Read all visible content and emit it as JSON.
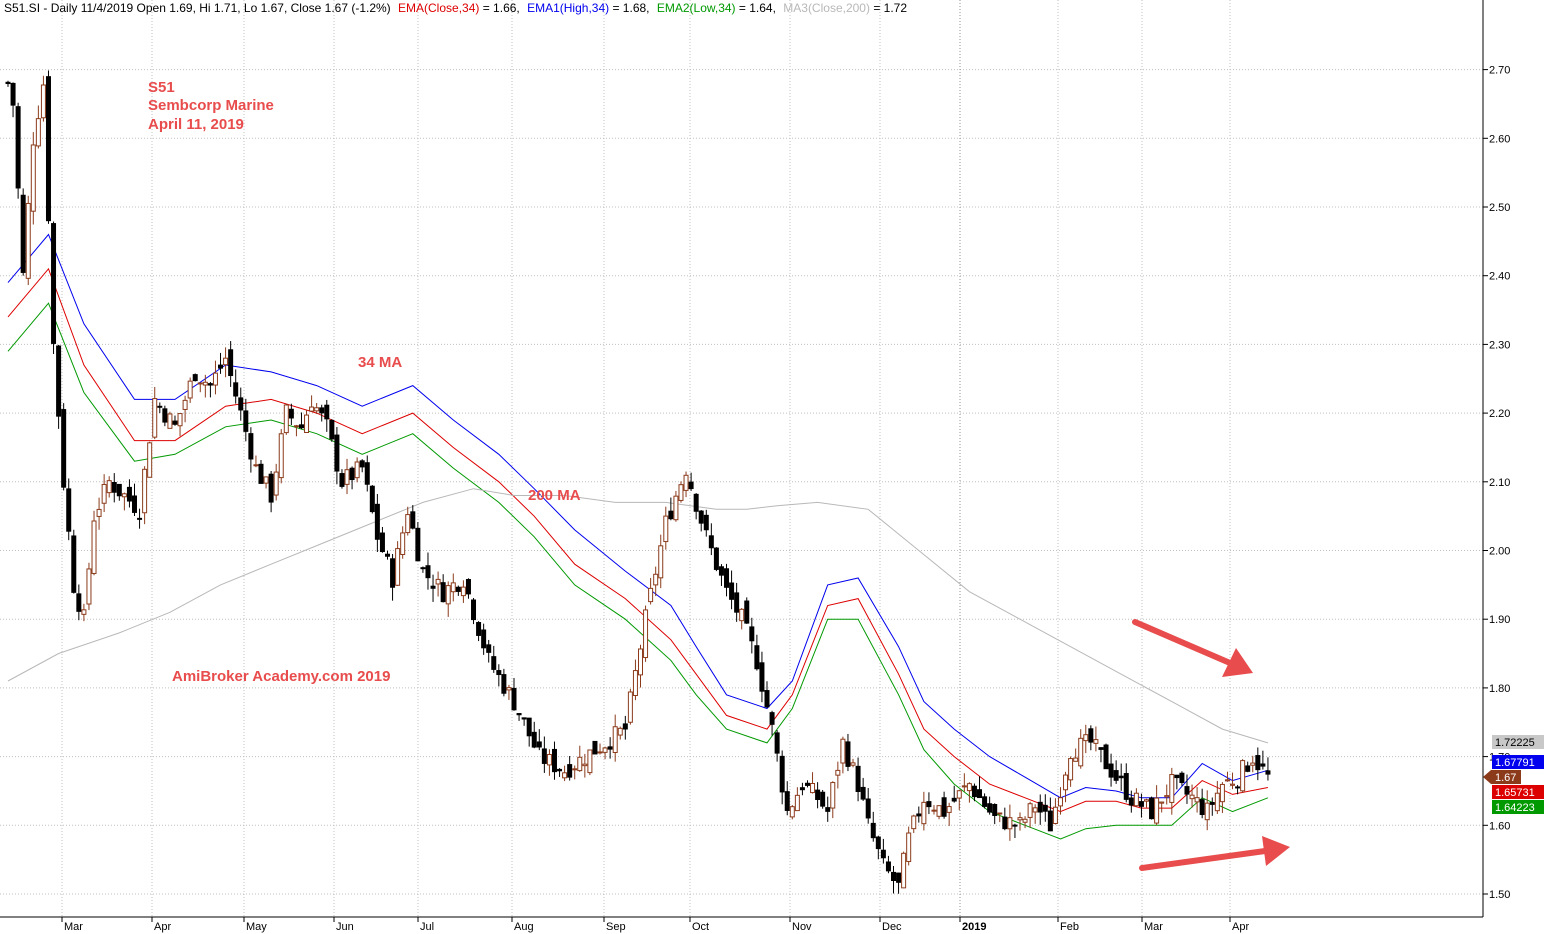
{
  "header": {
    "ticker_info": "S51.SI - Daily 11/4/2019 Open 1.69, Hi 1.71, Lo 1.67, Close 1.67 (-1.2%)",
    "ema_close": "EMA(Close,34)",
    "ema_close_val": " = 1.66,",
    "ema_high": "EMA1(High,34)",
    "ema_high_val": " = 1.68,",
    "ema_low": "EMA2(Low,34)",
    "ema_low_val": " = 1.64,",
    "ma_close": "MA3(Close,200)",
    "ma_close_val": " = 1.72"
  },
  "annotations": {
    "ticker": "S51",
    "company": "Sembcorp Marine",
    "date": "April 11, 2019",
    "ma34": "34 MA",
    "ma200": "200 MA",
    "watermark": "AmiBroker Academy.com  2019"
  },
  "chart_data": {
    "type": "candlestick",
    "title": "S51.SI - Daily",
    "ylim": [
      1.47,
      2.76
    ],
    "y_ticks": [
      1.5,
      1.6,
      1.7,
      1.8,
      1.9,
      2.0,
      2.1,
      2.2,
      2.3,
      2.4,
      2.5,
      2.6,
      2.7
    ],
    "y_tick_labels": [
      "1.50",
      "1.60",
      "1.70",
      "1.80",
      "1.90",
      "2.00",
      "2.10",
      "2.20",
      "2.30",
      "2.40",
      "2.50",
      "2.60",
      "2.70"
    ],
    "x_month_labels": [
      "Mar",
      "Apr",
      "May",
      "Jun",
      "Jul",
      "Aug",
      "Sep",
      "Oct",
      "Nov",
      "Dec",
      "2019",
      "Feb",
      "Mar",
      "Apr"
    ],
    "grid": true,
    "price_labels": [
      {
        "text": "1.72225",
        "value": 1.72225,
        "color": "#c8c8c8",
        "text_color": "#000000"
      },
      {
        "text": "1.67791",
        "value": 1.67791,
        "color": "#0000ee",
        "text_color": "#ffffff"
      },
      {
        "text": "1.67",
        "value": 1.67,
        "color": "#8b3a1a",
        "text_color": "#ffffff"
      },
      {
        "text": "1.65731",
        "value": 1.65731,
        "color": "#dd0000",
        "text_color": "#ffffff"
      },
      {
        "text": "1.64223",
        "value": 1.64223,
        "color": "#009900",
        "text_color": "#ffffff"
      }
    ],
    "series": [
      {
        "name": "EMA(Close,34)",
        "color": "#dd0000",
        "x": [
          0,
          8,
          15,
          25,
          33,
          43,
          52,
          61,
          70,
          80,
          88,
          97,
          104,
          112,
          122,
          131,
          136,
          142,
          150,
          155,
          162,
          168,
          176,
          181,
          187,
          194,
          201,
          208,
          213,
          219,
          224,
          230,
          236,
          242,
          249
        ],
        "values": [
          2.34,
          2.41,
          2.27,
          2.16,
          2.16,
          2.21,
          2.22,
          2.2,
          2.17,
          2.2,
          2.15,
          2.1,
          2.05,
          1.98,
          1.93,
          1.87,
          1.82,
          1.76,
          1.74,
          1.79,
          1.92,
          1.93,
          1.82,
          1.74,
          1.7,
          1.66,
          1.64,
          1.62,
          1.635,
          1.635,
          1.625,
          1.625,
          1.665,
          1.645,
          1.655
        ]
      },
      {
        "name": "EMA1(High,34)",
        "color": "#0000ee",
        "x": [
          0,
          8,
          15,
          25,
          33,
          43,
          52,
          61,
          70,
          80,
          88,
          97,
          104,
          112,
          122,
          131,
          136,
          142,
          150,
          155,
          162,
          168,
          176,
          181,
          187,
          194,
          201,
          208,
          213,
          219,
          224,
          230,
          236,
          242,
          249
        ],
        "values": [
          2.39,
          2.46,
          2.33,
          2.22,
          2.22,
          2.27,
          2.26,
          2.24,
          2.21,
          2.24,
          2.19,
          2.14,
          2.09,
          2.03,
          1.97,
          1.92,
          1.86,
          1.79,
          1.77,
          1.81,
          1.95,
          1.96,
          1.86,
          1.78,
          1.74,
          1.7,
          1.67,
          1.64,
          1.655,
          1.65,
          1.64,
          1.64,
          1.69,
          1.665,
          1.68
        ]
      },
      {
        "name": "EMA2(Low,34)",
        "color": "#009900",
        "x": [
          0,
          8,
          15,
          25,
          33,
          43,
          52,
          61,
          70,
          80,
          88,
          97,
          104,
          112,
          122,
          131,
          136,
          142,
          150,
          155,
          162,
          168,
          176,
          181,
          187,
          194,
          201,
          208,
          213,
          219,
          224,
          230,
          236,
          242,
          249
        ],
        "values": [
          2.29,
          2.36,
          2.23,
          2.13,
          2.14,
          2.18,
          2.19,
          2.17,
          2.14,
          2.17,
          2.12,
          2.07,
          2.02,
          1.95,
          1.9,
          1.84,
          1.79,
          1.74,
          1.72,
          1.77,
          1.9,
          1.9,
          1.79,
          1.71,
          1.66,
          1.62,
          1.6,
          1.58,
          1.595,
          1.6,
          1.6,
          1.6,
          1.64,
          1.62,
          1.64
        ]
      },
      {
        "name": "MA3(Close,200)",
        "color": "#b8b8b8",
        "x": [
          0,
          10,
          22,
          32,
          42,
          52,
          62,
          72,
          82,
          92,
          100,
          110,
          120,
          130,
          140,
          146,
          152,
          160,
          170,
          180,
          190,
          200,
          210,
          220,
          230,
          240,
          249
        ],
        "values": [
          1.81,
          1.85,
          1.88,
          1.91,
          1.95,
          1.98,
          2.01,
          2.04,
          2.07,
          2.09,
          2.08,
          2.08,
          2.07,
          2.07,
          2.06,
          2.06,
          2.065,
          2.07,
          2.06,
          2.0,
          1.94,
          1.9,
          1.86,
          1.82,
          1.78,
          1.74,
          1.72
        ]
      }
    ],
    "ohlc_anchors": {
      "x": [
        0,
        1,
        3,
        5,
        7,
        9,
        11,
        13,
        15,
        17,
        20,
        23,
        26,
        29,
        33,
        37,
        40,
        43,
        46,
        49,
        52,
        55,
        58,
        60,
        63,
        66,
        70,
        73,
        76,
        79,
        82,
        86,
        90,
        95,
        100,
        105,
        110,
        114,
        118,
        122,
        126,
        130,
        134,
        138,
        142,
        145,
        148,
        151,
        154,
        157,
        160,
        162,
        165,
        168,
        170,
        173,
        176,
        178,
        181,
        185,
        190,
        195,
        200,
        203,
        206,
        210,
        214,
        218,
        222,
        226,
        230,
        234,
        237,
        240,
        243,
        246,
        249
      ],
      "close": [
        2.68,
        2.65,
        2.4,
        2.6,
        2.68,
        2.3,
        2.1,
        1.95,
        1.9,
        2.05,
        2.1,
        2.08,
        2.06,
        2.22,
        2.18,
        2.26,
        2.24,
        2.28,
        2.2,
        2.12,
        2.08,
        2.2,
        2.18,
        2.22,
        2.18,
        2.1,
        2.12,
        2.02,
        1.96,
        2.06,
        1.97,
        1.94,
        1.96,
        1.84,
        1.78,
        1.7,
        1.68,
        1.7,
        1.72,
        1.74,
        1.9,
        2.04,
        2.12,
        2.02,
        1.94,
        1.9,
        1.84,
        1.74,
        1.62,
        1.66,
        1.64,
        1.62,
        1.72,
        1.66,
        1.6,
        1.54,
        1.51,
        1.58,
        1.64,
        1.62,
        1.66,
        1.61,
        1.6,
        1.63,
        1.6,
        1.71,
        1.72,
        1.68,
        1.64,
        1.62,
        1.66,
        1.64,
        1.62,
        1.66,
        1.67,
        1.7,
        1.67
      ]
    }
  }
}
